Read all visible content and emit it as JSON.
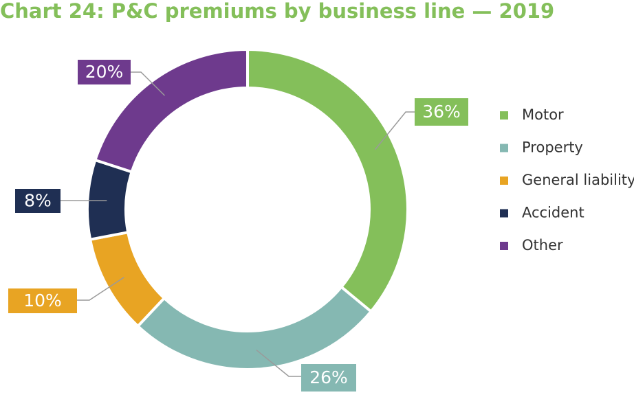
{
  "chart_data": {
    "type": "donut",
    "title": "Chart 24: P&C premiums by business line — 2019",
    "categories": [
      "Motor",
      "Property",
      "General liability",
      "Accident",
      "Other"
    ],
    "values": [
      36,
      26,
      10,
      8,
      20
    ],
    "value_labels": [
      "36%",
      "26%",
      "10%",
      "8%",
      "20%"
    ],
    "colors": [
      "#84bf5a",
      "#85b8b2",
      "#e8a423",
      "#1f2f53",
      "#6e3a8d"
    ],
    "legend": "right"
  }
}
